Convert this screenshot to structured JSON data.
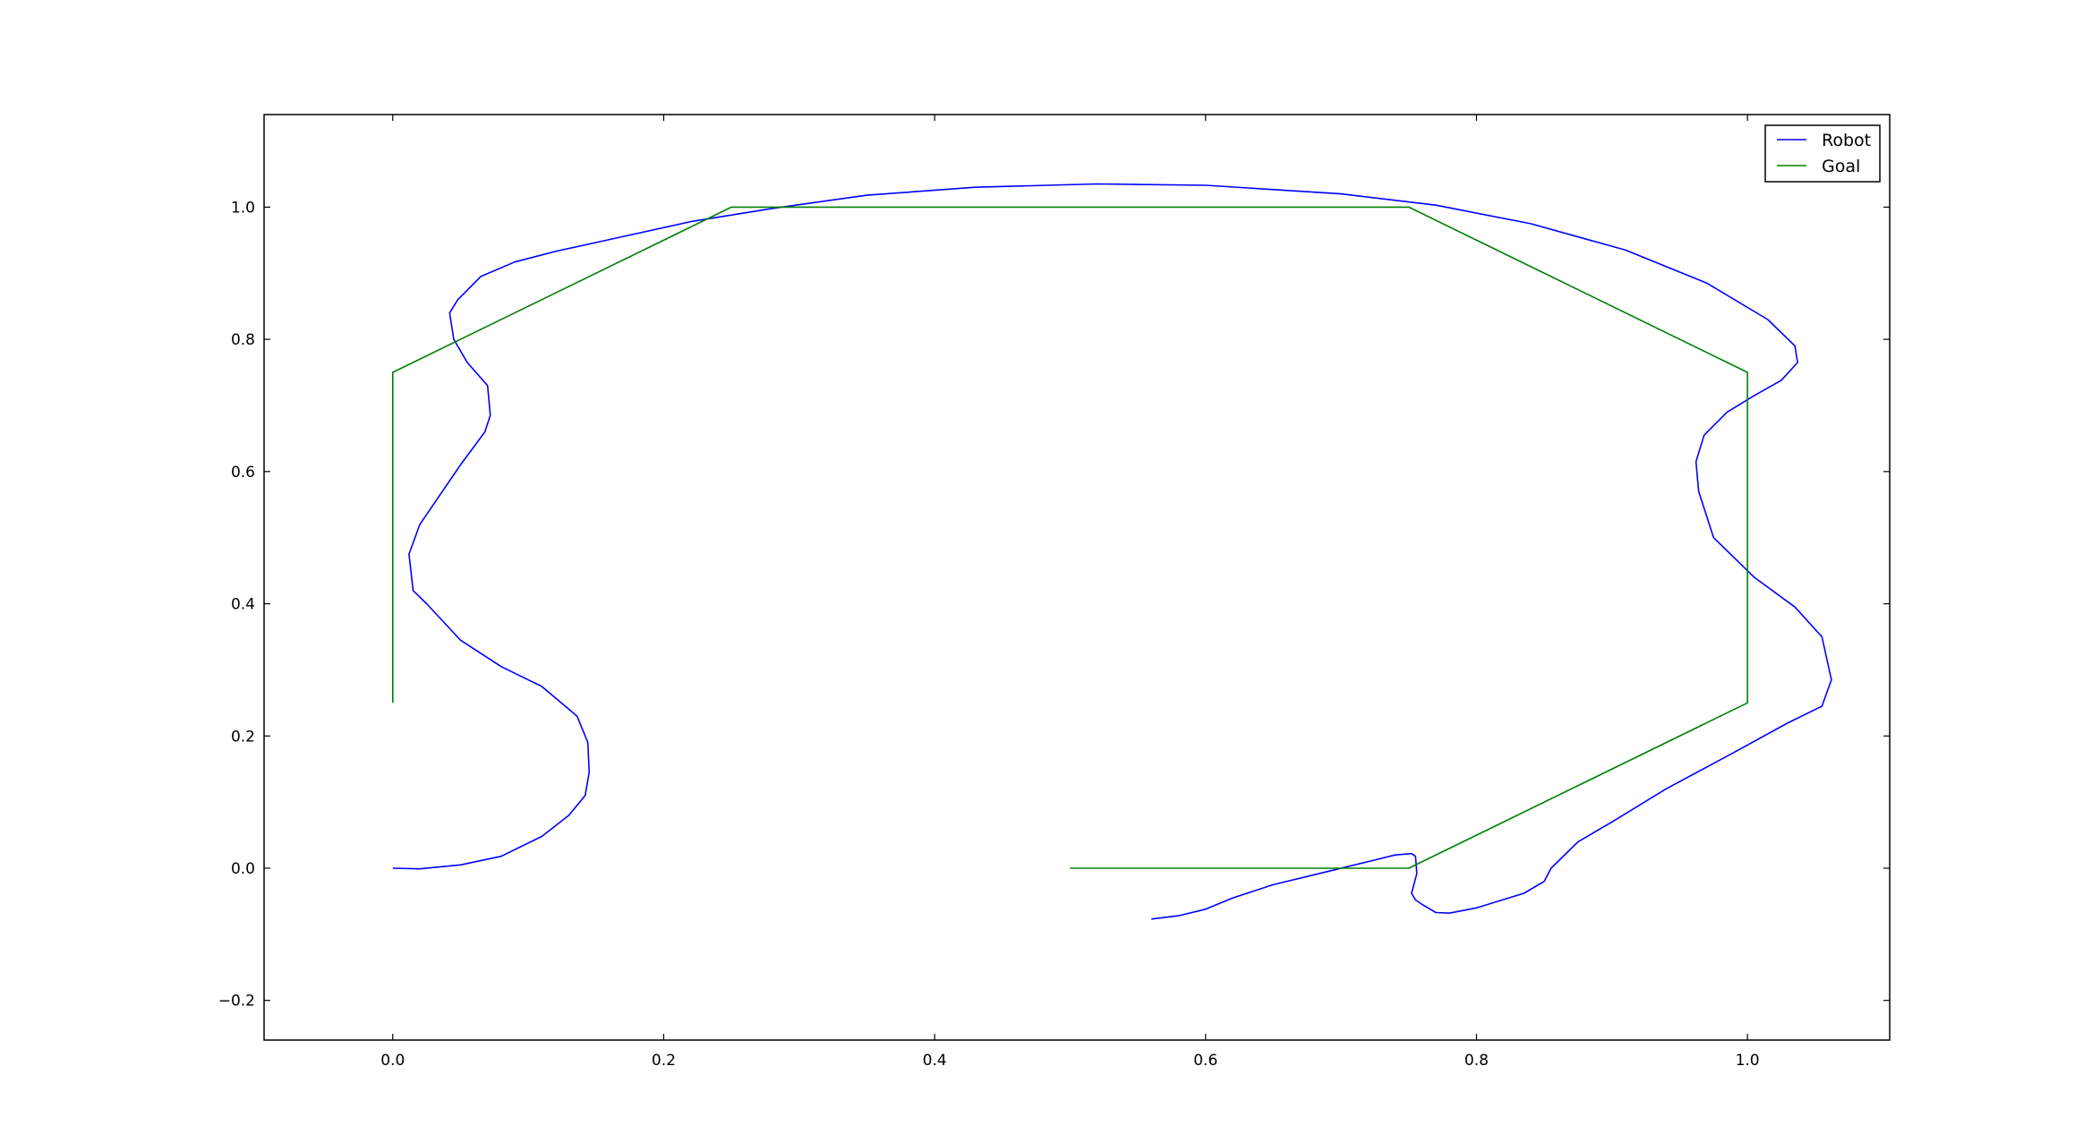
{
  "chart_data": {
    "type": "line",
    "title": "",
    "xlabel": "",
    "ylabel": "",
    "xlim": [
      -0.095,
      1.105
    ],
    "ylim": [
      -0.26,
      1.14
    ],
    "xticks": [
      0.0,
      0.2,
      0.4,
      0.6,
      0.8,
      1.0
    ],
    "xtick_labels": [
      "0.0",
      "0.2",
      "0.4",
      "0.6",
      "0.8",
      "1.0"
    ],
    "yticks": [
      -0.2,
      0.0,
      0.2,
      0.4,
      0.6,
      0.8,
      1.0
    ],
    "ytick_labels": [
      "−0.2",
      "0.0",
      "0.2",
      "0.4",
      "0.6",
      "0.8",
      "1.0"
    ],
    "grid": false,
    "legend": "top-right",
    "series": [
      {
        "name": "Robot",
        "color": "#0000ff",
        "points": [
          [
            0.0,
            0.0
          ],
          [
            0.02,
            -0.001
          ],
          [
            0.05,
            0.005
          ],
          [
            0.08,
            0.018
          ],
          [
            0.11,
            0.048
          ],
          [
            0.13,
            0.08
          ],
          [
            0.142,
            0.11
          ],
          [
            0.145,
            0.145
          ],
          [
            0.144,
            0.19
          ],
          [
            0.136,
            0.23
          ],
          [
            0.11,
            0.275
          ],
          [
            0.08,
            0.305
          ],
          [
            0.05,
            0.345
          ],
          [
            0.025,
            0.4
          ],
          [
            0.015,
            0.42
          ],
          [
            0.012,
            0.475
          ],
          [
            0.02,
            0.52
          ],
          [
            0.05,
            0.61
          ],
          [
            0.068,
            0.66
          ],
          [
            0.072,
            0.685
          ],
          [
            0.07,
            0.73
          ],
          [
            0.055,
            0.765
          ],
          [
            0.045,
            0.8
          ],
          [
            0.042,
            0.84
          ],
          [
            0.048,
            0.86
          ],
          [
            0.065,
            0.895
          ],
          [
            0.09,
            0.917
          ],
          [
            0.12,
            0.933
          ],
          [
            0.16,
            0.951
          ],
          [
            0.22,
            0.978
          ],
          [
            0.28,
            0.998
          ],
          [
            0.35,
            1.018
          ],
          [
            0.43,
            1.03
          ],
          [
            0.52,
            1.035
          ],
          [
            0.6,
            1.033
          ],
          [
            0.7,
            1.02
          ],
          [
            0.77,
            1.003
          ],
          [
            0.84,
            0.975
          ],
          [
            0.91,
            0.935
          ],
          [
            0.97,
            0.885
          ],
          [
            1.015,
            0.83
          ],
          [
            1.035,
            0.79
          ],
          [
            1.037,
            0.765
          ],
          [
            1.025,
            0.738
          ],
          [
            1.005,
            0.715
          ],
          [
            0.985,
            0.69
          ],
          [
            0.968,
            0.655
          ],
          [
            0.962,
            0.615
          ],
          [
            0.964,
            0.57
          ],
          [
            0.975,
            0.5
          ],
          [
            1.005,
            0.44
          ],
          [
            1.035,
            0.395
          ],
          [
            1.055,
            0.35
          ],
          [
            1.062,
            0.285
          ],
          [
            1.055,
            0.245
          ],
          [
            1.03,
            0.22
          ],
          [
            0.99,
            0.175
          ],
          [
            0.94,
            0.12
          ],
          [
            0.9,
            0.07
          ],
          [
            0.875,
            0.04
          ],
          [
            0.855,
            0.0
          ],
          [
            0.85,
            -0.02
          ],
          [
            0.835,
            -0.038
          ],
          [
            0.8,
            -0.06
          ],
          [
            0.78,
            -0.068
          ],
          [
            0.77,
            -0.067
          ],
          [
            0.76,
            -0.055
          ],
          [
            0.755,
            -0.048
          ],
          [
            0.752,
            -0.038
          ],
          [
            0.754,
            -0.023
          ],
          [
            0.756,
            -0.008
          ],
          [
            0.755,
            0.018
          ],
          [
            0.752,
            0.022
          ],
          [
            0.74,
            0.02
          ],
          [
            0.72,
            0.01
          ],
          [
            0.69,
            -0.005
          ],
          [
            0.65,
            -0.025
          ],
          [
            0.62,
            -0.045
          ],
          [
            0.6,
            -0.062
          ],
          [
            0.58,
            -0.072
          ],
          [
            0.56,
            -0.077
          ]
        ]
      },
      {
        "name": "Goal",
        "color": "#008000",
        "points": [
          [
            0.0,
            0.25
          ],
          [
            0.0,
            0.75
          ],
          [
            0.25,
            1.0
          ],
          [
            0.75,
            1.0
          ],
          [
            1.0,
            0.75
          ],
          [
            1.0,
            0.25
          ],
          [
            0.75,
            0.0
          ],
          [
            0.5,
            0.0
          ]
        ]
      }
    ]
  }
}
